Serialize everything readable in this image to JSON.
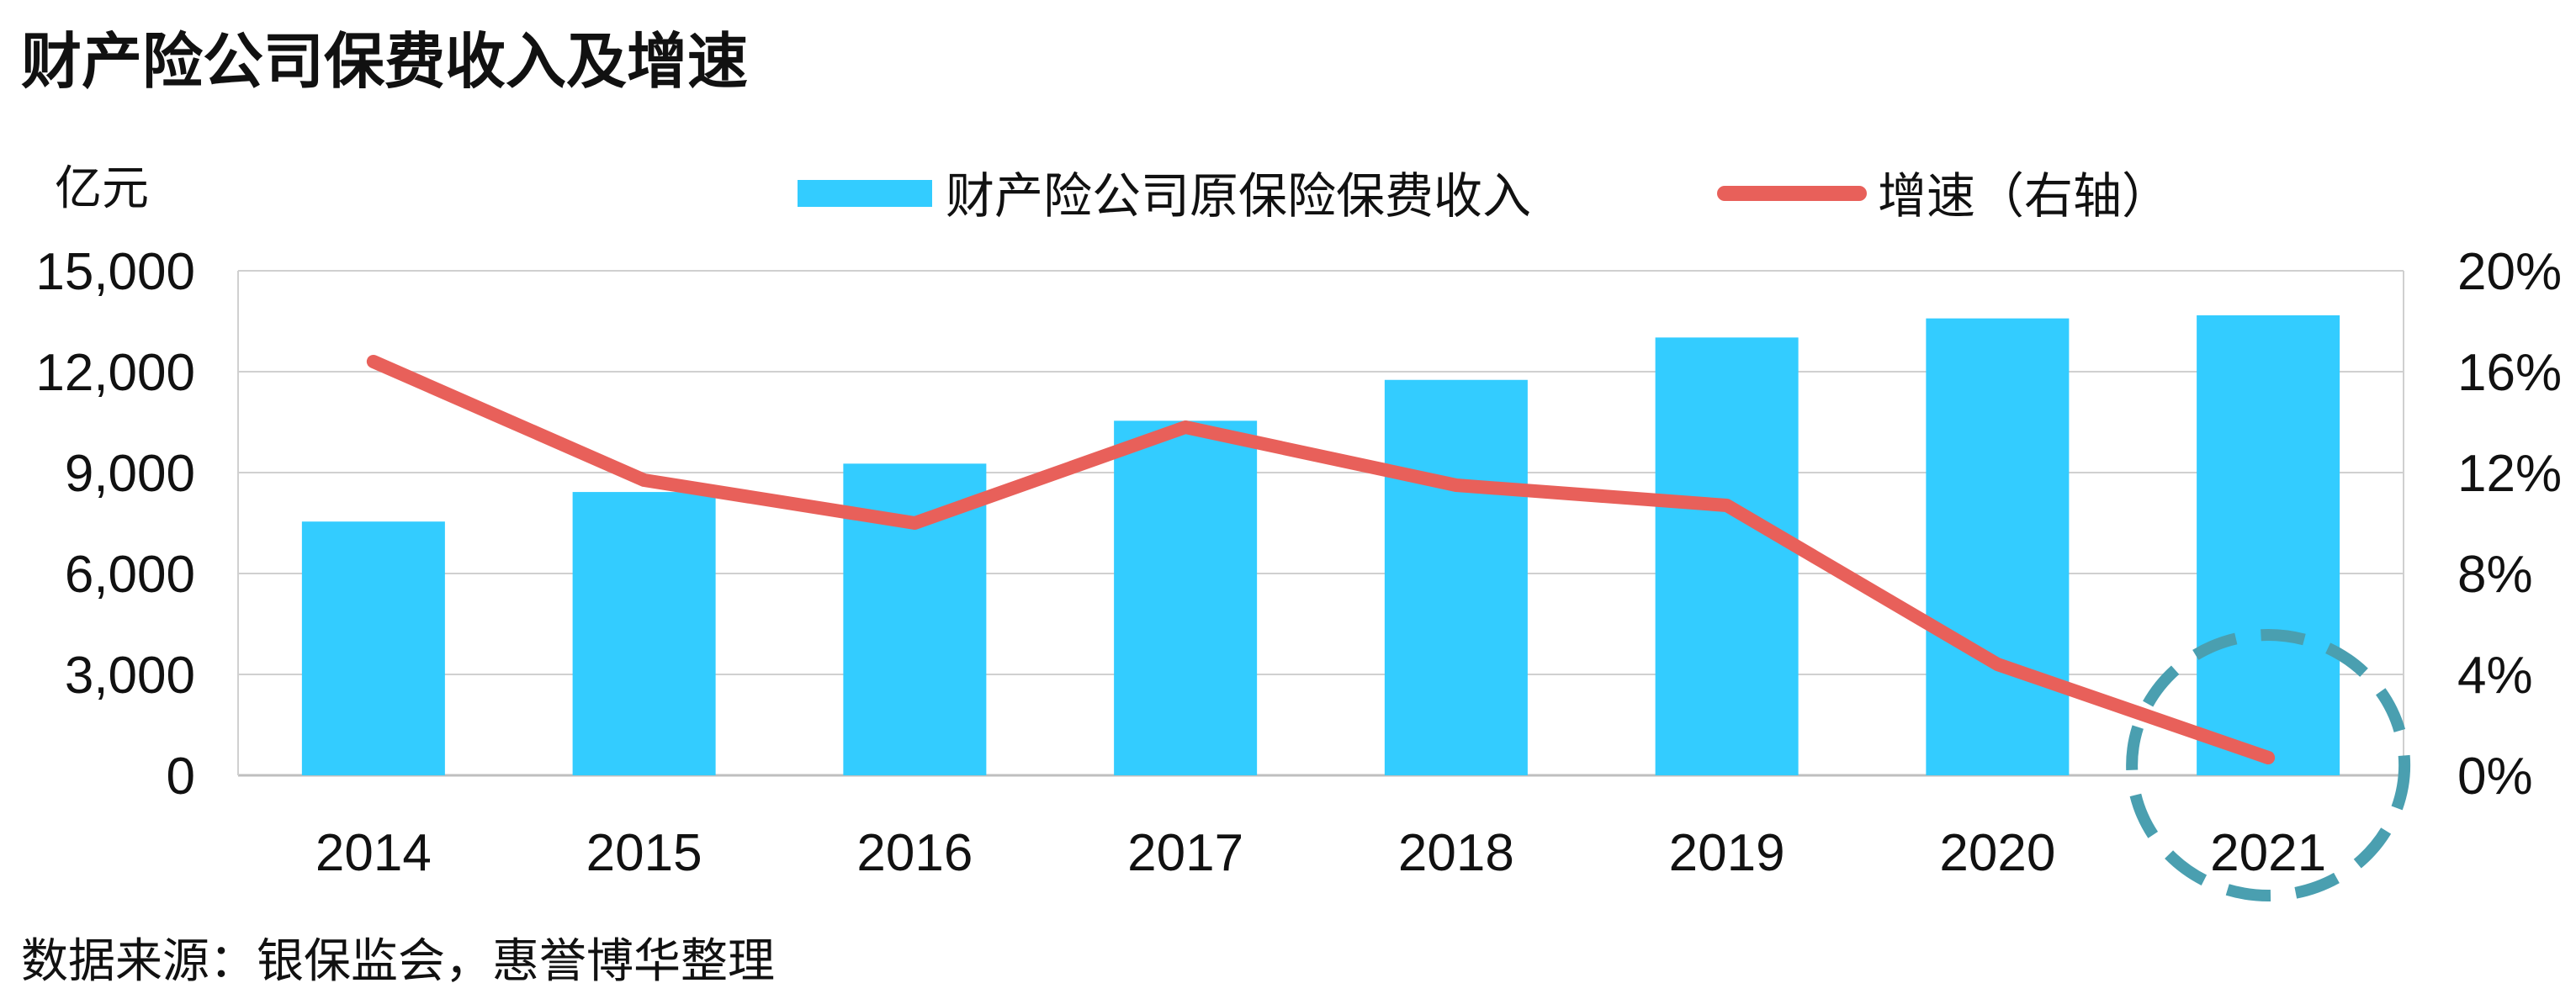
{
  "chart_data": {
    "type": "bar",
    "title": "财产险公司保费收入及增速",
    "left_unit": "亿元",
    "categories": [
      "2014",
      "2015",
      "2016",
      "2017",
      "2018",
      "2019",
      "2020",
      "2021"
    ],
    "series": [
      {
        "name": "财产险公司原保险保费收入",
        "type": "bar",
        "axis": "left",
        "color": "#33ccff",
        "values": [
          7544,
          8423,
          9266,
          10541,
          11756,
          13016,
          13584,
          13676
        ]
      },
      {
        "name": "增速（右轴）",
        "type": "line",
        "axis": "right",
        "color": "#e8605a",
        "values": [
          16.4,
          11.7,
          10.0,
          13.8,
          11.5,
          10.7,
          4.4,
          0.7
        ]
      }
    ],
    "left_axis": {
      "min": 0,
      "max": 15000,
      "ticks": [
        "0",
        "3,000",
        "6,000",
        "9,000",
        "12,000",
        "15,000"
      ]
    },
    "right_axis": {
      "min": 0,
      "max": 20,
      "ticks": [
        "0%",
        "4%",
        "8%",
        "12%",
        "16%",
        "20%"
      ]
    },
    "grid": true,
    "legend": "top",
    "highlight_category": "2021",
    "highlight_color": "#4a9fb0"
  },
  "source_note": "数据来源：银保监会，惠誉博华整理"
}
